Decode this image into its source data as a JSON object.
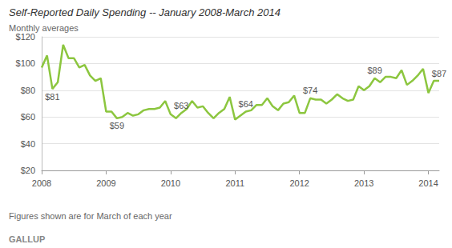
{
  "chart_data": {
    "type": "line",
    "title": "Self-Reported Daily Spending -- January 2008-March 2014",
    "subtitle": "Monthly averages",
    "note": "Figures shown are for March of each year",
    "source": "GALLUP",
    "categories": [
      "2008",
      null,
      null,
      null,
      null,
      null,
      null,
      null,
      null,
      null,
      null,
      null,
      "2009",
      null,
      null,
      null,
      null,
      null,
      null,
      null,
      null,
      null,
      null,
      null,
      "2010",
      null,
      null,
      null,
      null,
      null,
      null,
      null,
      null,
      null,
      null,
      null,
      "2011",
      null,
      null,
      null,
      null,
      null,
      null,
      null,
      null,
      null,
      null,
      null,
      "2012",
      null,
      null,
      null,
      null,
      null,
      null,
      null,
      null,
      null,
      null,
      null,
      "2013",
      null,
      null,
      null,
      null,
      null,
      null,
      null,
      null,
      null,
      null,
      null,
      "2014",
      null,
      null
    ],
    "values": [
      97,
      106,
      81,
      86,
      114,
      104,
      104,
      97,
      99,
      91,
      87,
      89,
      64,
      64,
      59,
      60,
      63,
      61,
      62,
      65,
      66,
      66,
      67,
      72,
      62,
      59,
      63,
      66,
      72,
      67,
      68,
      63,
      59,
      63,
      66,
      75,
      58,
      61,
      64,
      65,
      69,
      69,
      74,
      68,
      65,
      70,
      71,
      76,
      63,
      63,
      74,
      73,
      73,
      70,
      73,
      77,
      74,
      72,
      73,
      83,
      80,
      83,
      89,
      86,
      90,
      90,
      89,
      95,
      84,
      87,
      91,
      96,
      78,
      87,
      87
    ],
    "value_labels": [
      null,
      null,
      "$81",
      null,
      null,
      null,
      null,
      null,
      null,
      null,
      null,
      null,
      null,
      null,
      "$59",
      null,
      null,
      null,
      null,
      null,
      null,
      null,
      null,
      null,
      null,
      null,
      "$63",
      null,
      null,
      null,
      null,
      null,
      null,
      null,
      null,
      null,
      null,
      null,
      "$64",
      null,
      null,
      null,
      null,
      null,
      null,
      null,
      null,
      null,
      null,
      null,
      "$74",
      null,
      null,
      null,
      null,
      null,
      null,
      null,
      null,
      null,
      null,
      null,
      "$89",
      null,
      null,
      null,
      null,
      null,
      null,
      null,
      null,
      null,
      null,
      null,
      "$87"
    ],
    "color": "#8cc63f",
    "ylim": [
      20,
      120
    ],
    "yticks": [
      {
        "value": 20,
        "label": "$20"
      },
      {
        "value": 40,
        "label": "$40"
      },
      {
        "value": 60,
        "label": "$60"
      },
      {
        "value": 80,
        "label": "$80"
      },
      {
        "value": 100,
        "label": "$100"
      },
      {
        "value": 120,
        "label": "$120"
      }
    ],
    "grid": true
  }
}
